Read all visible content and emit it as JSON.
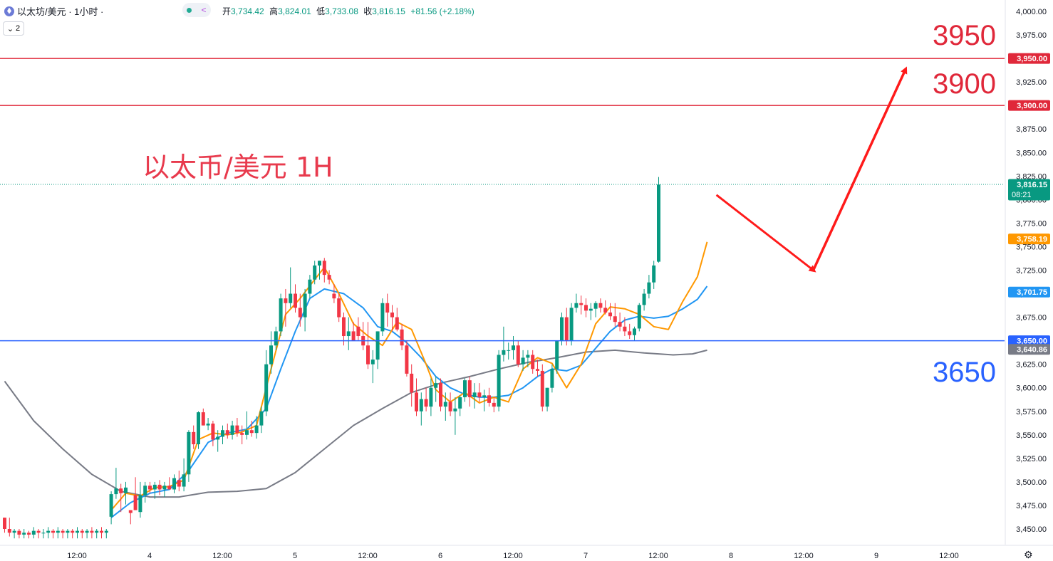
{
  "header": {
    "symbol": "以太坊/美元 · 1小时 ·",
    "open_label": "开",
    "open": "3,734.42",
    "high_label": "高",
    "high": "3,824.01",
    "low_label": "低",
    "low": "3,733.08",
    "close_label": "收",
    "close": "3,816.15",
    "change": "+81.56 (+2.18%)",
    "indicator_count": "2"
  },
  "colors": {
    "up": "#089981",
    "down": "#f23645",
    "ma_fast": "#ff9800",
    "ma_mid": "#2196f3",
    "ma_slow": "#787b86",
    "resistance": "#e0283a",
    "support": "#2962ff",
    "arrow": "#ff1a1a"
  },
  "chart_data": {
    "type": "candlestick",
    "title": "以太币/美元 1H",
    "ylim": [
      3440,
      4010
    ],
    "y_ticks": [
      "4,000.00",
      "3,975.00",
      "3,950.00",
      "3,925.00",
      "3,900.00",
      "3,875.00",
      "3,850.00",
      "3,825.00",
      "3,800.00",
      "3,775.00",
      "3,750.00",
      "3,725.00",
      "3,700.00",
      "3,675.00",
      "3,650.00",
      "3,625.00",
      "3,600.00",
      "3,575.00",
      "3,550.00",
      "3,525.00",
      "3,500.00",
      "3,475.00",
      "3,450.00"
    ],
    "y_tick_values": [
      4000,
      3975,
      3950,
      3925,
      3900,
      3875,
      3850,
      3825,
      3800,
      3775,
      3750,
      3725,
      3700,
      3675,
      3650,
      3625,
      3600,
      3575,
      3550,
      3525,
      3500,
      3475,
      3450
    ],
    "x_tick_labels": [
      "12:00",
      "4",
      "12:00",
      "5",
      "12:00",
      "6",
      "12:00",
      "7",
      "12:00",
      "8",
      "12:00",
      "9",
      "12:00"
    ],
    "x_tick_bars": [
      15,
      30,
      45,
      60,
      75,
      90,
      105,
      120,
      135,
      150,
      165,
      180,
      195
    ],
    "candles": [
      [
        3462,
        3462,
        3446,
        3450
      ],
      [
        3450,
        3462,
        3442,
        3446
      ],
      [
        3446,
        3450,
        3440,
        3448
      ],
      [
        3448,
        3450,
        3440,
        3444
      ],
      [
        3444,
        3450,
        3440,
        3446
      ],
      [
        3446,
        3448,
        3440,
        3444
      ],
      [
        3444,
        3452,
        3440,
        3448
      ],
      [
        3448,
        3450,
        3440,
        3446
      ],
      [
        3446,
        3450,
        3440,
        3446
      ],
      [
        3446,
        3452,
        3440,
        3448
      ],
      [
        3448,
        3450,
        3440,
        3446
      ],
      [
        3446,
        3452,
        3440,
        3448
      ],
      [
        3448,
        3450,
        3440,
        3446
      ],
      [
        3446,
        3450,
        3440,
        3448
      ],
      [
        3448,
        3450,
        3440,
        3446
      ],
      [
        3446,
        3452,
        3440,
        3448
      ],
      [
        3448,
        3450,
        3440,
        3446
      ],
      [
        3446,
        3450,
        3440,
        3448
      ],
      [
        3448,
        3452,
        3440,
        3446
      ],
      [
        3446,
        3450,
        3440,
        3448
      ],
      [
        3448,
        3452,
        3440,
        3446
      ],
      [
        3446,
        3450,
        3440,
        3448
      ],
      [
        3463,
        3490,
        3455,
        3487
      ],
      [
        3487,
        3515,
        3482,
        3493
      ],
      [
        3493,
        3498,
        3468,
        3488
      ],
      [
        3488,
        3500,
        3476,
        3494
      ],
      [
        3470,
        3470,
        3455,
        3467
      ],
      [
        3486,
        3505,
        3470,
        3470
      ],
      [
        3468,
        3500,
        3462,
        3486
      ],
      [
        3486,
        3500,
        3478,
        3496
      ],
      [
        3496,
        3500,
        3488,
        3492
      ],
      [
        3492,
        3500,
        3482,
        3497
      ],
      [
        3497,
        3502,
        3486,
        3492
      ],
      [
        3492,
        3500,
        3484,
        3496
      ],
      [
        3496,
        3505,
        3492,
        3492
      ],
      [
        3492,
        3508,
        3488,
        3504
      ],
      [
        3502,
        3512,
        3490,
        3495
      ],
      [
        3495,
        3525,
        3490,
        3508
      ],
      [
        3508,
        3555,
        3500,
        3553
      ],
      [
        3553,
        3560,
        3535,
        3540
      ],
      [
        3540,
        3575,
        3535,
        3574
      ],
      [
        3574,
        3578,
        3560,
        3560
      ],
      [
        3560,
        3568,
        3555,
        3562
      ],
      [
        3562,
        3565,
        3538,
        3545
      ],
      [
        3545,
        3555,
        3532,
        3548
      ],
      [
        3548,
        3560,
        3540,
        3555
      ],
      [
        3555,
        3562,
        3546,
        3550
      ],
      [
        3550,
        3565,
        3545,
        3560
      ],
      [
        3560,
        3568,
        3548,
        3552
      ],
      [
        3552,
        3560,
        3540,
        3550
      ],
      [
        3550,
        3575,
        3545,
        3555
      ],
      [
        3555,
        3565,
        3548,
        3552
      ],
      [
        3552,
        3570,
        3546,
        3560
      ],
      [
        3560,
        3580,
        3552,
        3575
      ],
      [
        3575,
        3640,
        3570,
        3625
      ],
      [
        3625,
        3660,
        3615,
        3645
      ],
      [
        3645,
        3665,
        3640,
        3660
      ],
      [
        3660,
        3700,
        3655,
        3695
      ],
      [
        3695,
        3705,
        3665,
        3690
      ],
      [
        3690,
        3728,
        3685,
        3700
      ],
      [
        3700,
        3710,
        3680,
        3685
      ],
      [
        3685,
        3700,
        3665,
        3675
      ],
      [
        3675,
        3705,
        3660,
        3700
      ],
      [
        3700,
        3720,
        3695,
        3715
      ],
      [
        3715,
        3735,
        3710,
        3730
      ],
      [
        3730,
        3735,
        3715,
        3735
      ],
      [
        3735,
        3738,
        3712,
        3720
      ],
      [
        3720,
        3725,
        3710,
        3715
      ],
      [
        3700,
        3710,
        3690,
        3695
      ],
      [
        3695,
        3700,
        3670,
        3675
      ],
      [
        3675,
        3680,
        3645,
        3655
      ],
      [
        3655,
        3675,
        3640,
        3660
      ],
      [
        3660,
        3670,
        3650,
        3650
      ],
      [
        3665,
        3675,
        3650,
        3655
      ],
      [
        3655,
        3670,
        3640,
        3645
      ],
      [
        3645,
        3670,
        3620,
        3625
      ],
      [
        3625,
        3640,
        3605,
        3630
      ],
      [
        3630,
        3660,
        3620,
        3660
      ],
      [
        3660,
        3695,
        3655,
        3690
      ],
      [
        3690,
        3700,
        3665,
        3680
      ],
      [
        3680,
        3688,
        3660,
        3675
      ],
      [
        3675,
        3685,
        3660,
        3662
      ],
      [
        3662,
        3668,
        3640,
        3645
      ],
      [
        3645,
        3650,
        3612,
        3615
      ],
      [
        3615,
        3625,
        3580,
        3595
      ],
      [
        3595,
        3610,
        3570,
        3575
      ],
      [
        3575,
        3595,
        3560,
        3588
      ],
      [
        3588,
        3600,
        3575,
        3580
      ],
      [
        3580,
        3610,
        3570,
        3600
      ],
      [
        3600,
        3612,
        3585,
        3605
      ],
      [
        3605,
        3610,
        3575,
        3580
      ],
      [
        3580,
        3595,
        3565,
        3585
      ],
      [
        3585,
        3595,
        3570,
        3575
      ],
      [
        3575,
        3590,
        3550,
        3578
      ],
      [
        3578,
        3592,
        3570,
        3590
      ],
      [
        3590,
        3610,
        3585,
        3608
      ],
      [
        3608,
        3612,
        3580,
        3590
      ],
      [
        3590,
        3605,
        3578,
        3595
      ],
      [
        3595,
        3605,
        3585,
        3590
      ],
      [
        3590,
        3598,
        3575,
        3592
      ],
      [
        3592,
        3600,
        3580,
        3584
      ],
      [
        3584,
        3590,
        3574,
        3580
      ],
      [
        3580,
        3640,
        3575,
        3635
      ],
      [
        3635,
        3665,
        3628,
        3640
      ],
      [
        3640,
        3648,
        3630,
        3640
      ],
      [
        3640,
        3655,
        3630,
        3645
      ],
      [
        3645,
        3650,
        3622,
        3625
      ],
      [
        3625,
        3640,
        3618,
        3632
      ],
      [
        3632,
        3640,
        3622,
        3635
      ],
      [
        3635,
        3640,
        3615,
        3620
      ],
      [
        3620,
        3630,
        3612,
        3618
      ],
      [
        3618,
        3625,
        3575,
        3580
      ],
      [
        3580,
        3600,
        3575,
        3600
      ],
      [
        3600,
        3625,
        3595,
        3620
      ],
      [
        3620,
        3650,
        3615,
        3650
      ],
      [
        3650,
        3680,
        3645,
        3675
      ],
      [
        3675,
        3685,
        3645,
        3650
      ],
      [
        3650,
        3690,
        3645,
        3685
      ],
      [
        3685,
        3700,
        3680,
        3690
      ],
      [
        3690,
        3698,
        3678,
        3688
      ],
      [
        3688,
        3695,
        3675,
        3682
      ],
      [
        3682,
        3690,
        3672,
        3684
      ],
      [
        3684,
        3692,
        3675,
        3690
      ],
      [
        3690,
        3695,
        3680,
        3685
      ],
      [
        3685,
        3693,
        3678,
        3680
      ],
      [
        3680,
        3690,
        3672,
        3676
      ],
      [
        3676,
        3690,
        3665,
        3670
      ],
      [
        3670,
        3680,
        3660,
        3665
      ],
      [
        3665,
        3675,
        3655,
        3660
      ],
      [
        3660,
        3668,
        3652,
        3656
      ],
      [
        3656,
        3665,
        3650,
        3663
      ],
      [
        3663,
        3690,
        3660,
        3688
      ],
      [
        3688,
        3705,
        3682,
        3700
      ],
      [
        3700,
        3720,
        3695,
        3712
      ],
      [
        3712,
        3735,
        3705,
        3730
      ],
      [
        3734,
        3824,
        3733,
        3816
      ]
    ],
    "ma_fast": [
      [
        22,
        3470
      ],
      [
        25,
        3488
      ],
      [
        28,
        3485
      ],
      [
        31,
        3494
      ],
      [
        34,
        3495
      ],
      [
        37,
        3502
      ],
      [
        40,
        3545
      ],
      [
        43,
        3552
      ],
      [
        46,
        3550
      ],
      [
        49,
        3553
      ],
      [
        52,
        3560
      ],
      [
        55,
        3620
      ],
      [
        58,
        3678
      ],
      [
        61,
        3695
      ],
      [
        64,
        3715
      ],
      [
        66,
        3728
      ],
      [
        69,
        3700
      ],
      [
        72,
        3668
      ],
      [
        75,
        3655
      ],
      [
        78,
        3645
      ],
      [
        81,
        3670
      ],
      [
        84,
        3662
      ],
      [
        87,
        3625
      ],
      [
        89,
        3598
      ],
      [
        92,
        3585
      ],
      [
        95,
        3595
      ],
      [
        98,
        3584
      ],
      [
        101,
        3590
      ],
      [
        104,
        3585
      ],
      [
        107,
        3620
      ],
      [
        110,
        3632
      ],
      [
        113,
        3626
      ],
      [
        116,
        3600
      ],
      [
        119,
        3625
      ],
      [
        122,
        3668
      ],
      [
        125,
        3686
      ],
      [
        128,
        3684
      ],
      [
        131,
        3678
      ],
      [
        134,
        3665
      ],
      [
        137,
        3662
      ],
      [
        140,
        3692
      ],
      [
        143,
        3718
      ],
      [
        145,
        3755
      ]
    ],
    "ma_mid": [
      [
        22,
        3462
      ],
      [
        26,
        3478
      ],
      [
        30,
        3488
      ],
      [
        34,
        3492
      ],
      [
        38,
        3512
      ],
      [
        42,
        3542
      ],
      [
        46,
        3552
      ],
      [
        50,
        3556
      ],
      [
        54,
        3578
      ],
      [
        57,
        3620
      ],
      [
        60,
        3660
      ],
      [
        63,
        3695
      ],
      [
        66,
        3705
      ],
      [
        70,
        3700
      ],
      [
        74,
        3685
      ],
      [
        77,
        3665
      ],
      [
        80,
        3660
      ],
      [
        83,
        3648
      ],
      [
        86,
        3632
      ],
      [
        89,
        3612
      ],
      [
        92,
        3600
      ],
      [
        95,
        3593
      ],
      [
        98,
        3590
      ],
      [
        101,
        3590
      ],
      [
        104,
        3592
      ],
      [
        107,
        3600
      ],
      [
        110,
        3612
      ],
      [
        113,
        3620
      ],
      [
        116,
        3618
      ],
      [
        119,
        3624
      ],
      [
        122,
        3642
      ],
      [
        125,
        3660
      ],
      [
        128,
        3672
      ],
      [
        131,
        3676
      ],
      [
        134,
        3674
      ],
      [
        137,
        3676
      ],
      [
        140,
        3684
      ],
      [
        143,
        3694
      ],
      [
        145,
        3708
      ]
    ],
    "ma_slow": [
      [
        0,
        3607
      ],
      [
        6,
        3565
      ],
      [
        12,
        3535
      ],
      [
        18,
        3508
      ],
      [
        24,
        3490
      ],
      [
        30,
        3484
      ],
      [
        36,
        3484
      ],
      [
        42,
        3489
      ],
      [
        48,
        3490
      ],
      [
        54,
        3493
      ],
      [
        60,
        3510
      ],
      [
        66,
        3535
      ],
      [
        72,
        3560
      ],
      [
        78,
        3578
      ],
      [
        84,
        3595
      ],
      [
        90,
        3605
      ],
      [
        96,
        3612
      ],
      [
        102,
        3620
      ],
      [
        108,
        3627
      ],
      [
        114,
        3632
      ],
      [
        120,
        3638
      ],
      [
        126,
        3640
      ],
      [
        132,
        3637
      ],
      [
        138,
        3635
      ],
      [
        142,
        3636
      ],
      [
        145,
        3640
      ]
    ],
    "levels": [
      {
        "value": 3950,
        "tag": "3,950.00",
        "big_label": "3950",
        "color": "#e0283a"
      },
      {
        "value": 3900,
        "tag": "3,900.00",
        "big_label": "3900",
        "color": "#e0283a"
      },
      {
        "value": 3650,
        "tag": "3,650.00",
        "big_label": "3650",
        "color": "#2962ff"
      }
    ],
    "price_tags": [
      {
        "value": 3816.15,
        "text": "3,816.15",
        "sub": "08:21",
        "color": "#089981"
      },
      {
        "value": 3758.19,
        "text": "3,758.19",
        "sub": "",
        "color": "#ff9800"
      },
      {
        "value": 3701.75,
        "text": "3,701.75",
        "sub": "",
        "color": "#2196f3"
      },
      {
        "value": 3640.86,
        "text": "3,640.86",
        "sub": "",
        "color": "#787b86"
      }
    ],
    "projection": [
      [
        147,
        3805
      ],
      [
        167,
        3725
      ],
      [
        186,
        3938
      ]
    ]
  }
}
